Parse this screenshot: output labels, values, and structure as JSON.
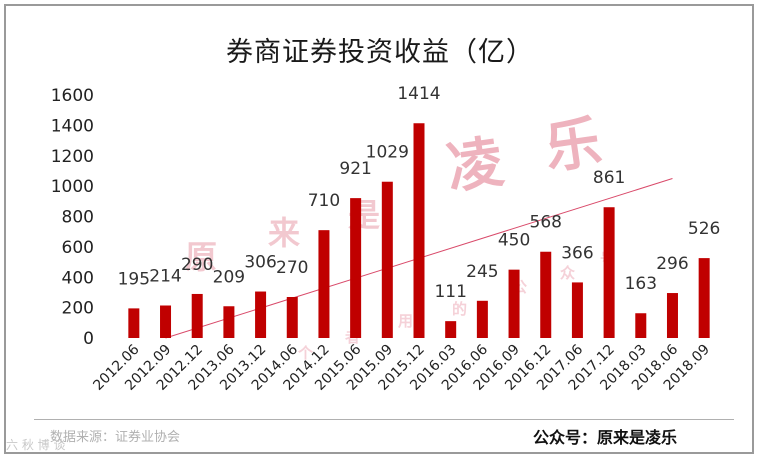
{
  "chart_data": {
    "type": "bar",
    "title": "券商证券投资收益（亿）",
    "categories": [
      "2012.06",
      "2012.09",
      "2012.12",
      "2013.06",
      "2013.12",
      "2014.06",
      "2014.12",
      "2015.06",
      "2015.09",
      "2015.12",
      "2016.03",
      "2016.06",
      "2016.09",
      "2016.12",
      "2017.06",
      "2017.12",
      "2018.03",
      "2018.06",
      "2018.09"
    ],
    "values": [
      195,
      214,
      290,
      209,
      306,
      270,
      710,
      921,
      1029,
      1414,
      111,
      245,
      450,
      568,
      366,
      861,
      163,
      296,
      526
    ],
    "ylim": [
      0,
      1600
    ],
    "yticks": [
      0,
      200,
      400,
      600,
      800,
      1000,
      1200,
      1400,
      1600
    ],
    "xlabel": "",
    "ylabel": "",
    "grid": false,
    "bar_color": "#c00000",
    "trendline": {
      "from_value": 0,
      "to_value": 1050,
      "color": "#d94a6a"
    }
  },
  "source_text": "数据来源：证券业协会",
  "account_text": "公众号：原来是凌乐",
  "watermark": {
    "big": [
      "凌",
      "乐"
    ],
    "small": [
      "原",
      "来",
      "是"
    ],
    "faint": [
      "个",
      "者",
      "用",
      "的",
      "公",
      "众",
      "号"
    ],
    "color": "#e89aa8"
  },
  "corner_text": "六 秋 博 谈"
}
